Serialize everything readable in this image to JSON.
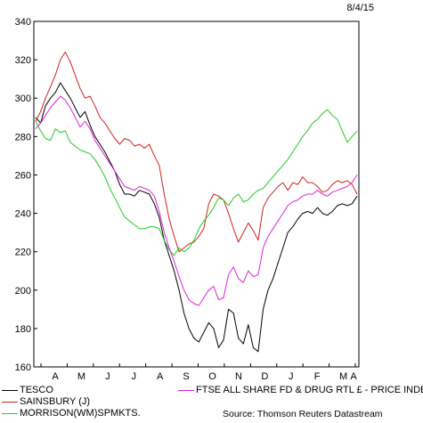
{
  "header": {
    "date": "8/4/15"
  },
  "chart_data": {
    "type": "line",
    "ylim": [
      160,
      340
    ],
    "y_ticks": [
      160,
      180,
      200,
      220,
      240,
      260,
      280,
      300,
      320,
      340
    ],
    "x_ticks": [
      "A",
      "M",
      "J",
      "J",
      "A",
      "S",
      "O",
      "N",
      "D",
      "J",
      "F",
      "M",
      "A"
    ],
    "grid": false,
    "legend_position": "bottom",
    "series": [
      {
        "name": "TESCO",
        "color": "#000000",
        "values": [
          290,
          287,
          296,
          300,
          303,
          308,
          304,
          300,
          295,
          290,
          293,
          286,
          280,
          276,
          272,
          267,
          262,
          255,
          250,
          250,
          249,
          252,
          251,
          250,
          245,
          238,
          226,
          218,
          210,
          200,
          188,
          180,
          175,
          173,
          178,
          183,
          180,
          170,
          174,
          190,
          188,
          175,
          172,
          182,
          170,
          168,
          190,
          200,
          206,
          214,
          222,
          230,
          233,
          237,
          240,
          241,
          240,
          243,
          240,
          239,
          241,
          244,
          245,
          244,
          245,
          249
        ]
      },
      {
        "name": "SAINSBURY (J)",
        "color": "#d42020",
        "values": [
          288,
          293,
          300,
          306,
          312,
          320,
          324,
          319,
          312,
          305,
          300,
          301,
          296,
          290,
          287,
          283,
          279,
          276,
          279,
          278,
          275,
          276,
          274,
          276,
          270,
          265,
          250,
          237,
          228,
          220,
          222,
          224,
          225,
          228,
          232,
          245,
          250,
          249,
          247,
          240,
          232,
          225,
          230,
          235,
          231,
          226,
          243,
          248,
          251,
          254,
          256,
          252,
          256,
          255,
          259,
          256,
          256,
          254,
          251,
          252,
          255,
          257,
          256,
          257,
          255,
          250
        ]
      },
      {
        "name": "MORRISON(WM)SPMKTS.",
        "color": "#22cc22",
        "values": [
          288,
          283,
          279,
          278,
          284,
          282,
          283,
          277,
          275,
          273,
          272,
          271,
          268,
          264,
          259,
          253,
          248,
          243,
          238,
          236,
          234,
          232,
          232,
          233,
          233,
          232,
          226,
          221,
          218,
          222,
          220,
          222,
          226,
          232,
          236,
          239,
          243,
          248,
          247,
          244,
          248,
          250,
          246,
          247,
          250,
          252,
          253,
          256,
          259,
          262,
          265,
          268,
          272,
          276,
          280,
          283,
          287,
          289,
          292,
          294,
          291,
          289,
          283,
          277,
          280,
          283
        ]
      },
      {
        "name": "FTSE ALL SHARE FD & DRUG RTL £ - PRICE INDEX",
        "color": "#dd22dd",
        "values": [
          284,
          287,
          291,
          295,
          298,
          301,
          299,
          295,
          290,
          285,
          288,
          284,
          278,
          274,
          270,
          266,
          262,
          258,
          254,
          253,
          252,
          254,
          253,
          252,
          249,
          241,
          230,
          222,
          215,
          207,
          200,
          195,
          193,
          192,
          196,
          200,
          202,
          195,
          196,
          208,
          212,
          206,
          204,
          210,
          207,
          208,
          222,
          228,
          232,
          236,
          240,
          244,
          246,
          247,
          249,
          250,
          250,
          252,
          250,
          249,
          251,
          252,
          253,
          254,
          256,
          260
        ]
      }
    ]
  },
  "legend": [
    {
      "label": "TESCO",
      "color": "#000000"
    },
    {
      "label": "SAINSBURY (J)",
      "color": "#d42020"
    },
    {
      "label": "MORRISON(WM)SPMKTS.",
      "color": "#22cc22"
    },
    {
      "label": "FTSE ALL SHARE FD & DRUG RTL £ - PRICE INDEX",
      "color": "#dd22dd"
    }
  ],
  "source": "Source: Thomson Reuters Datastream"
}
